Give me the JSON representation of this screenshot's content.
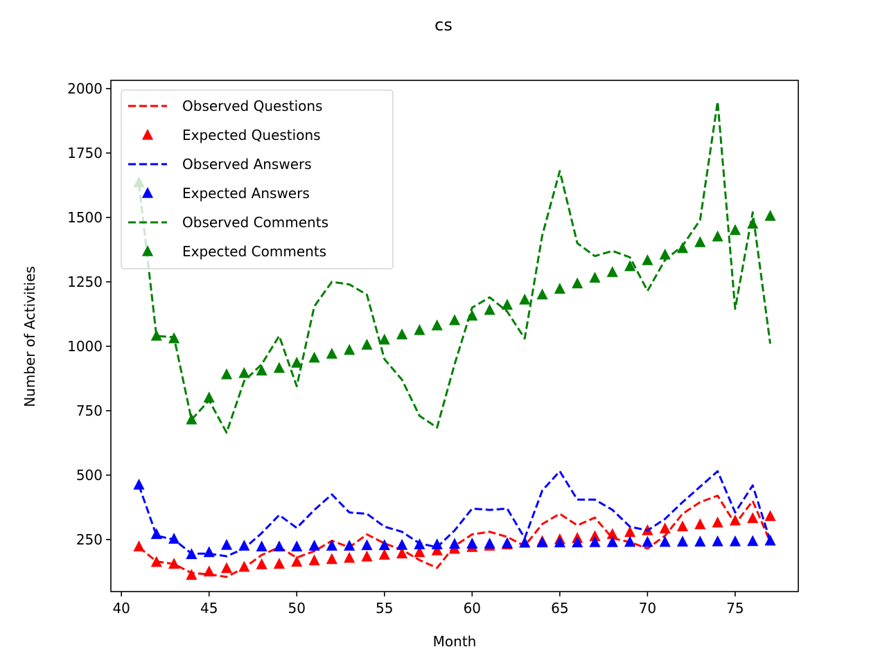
{
  "chart_data": {
    "type": "line",
    "title": "cs",
    "xlabel": "Month",
    "ylabel": "Number of Activities",
    "xlim": [
      39.4,
      78.6
    ],
    "ylim": [
      48,
      2032
    ],
    "xticks": [
      40,
      45,
      50,
      55,
      60,
      65,
      70,
      75
    ],
    "yticks": [
      250,
      500,
      750,
      1000,
      1250,
      1500,
      1750,
      2000
    ],
    "legend_position": "upper-left",
    "x": [
      41,
      42,
      43,
      44,
      45,
      46,
      47,
      48,
      49,
      50,
      51,
      52,
      53,
      54,
      55,
      56,
      57,
      58,
      59,
      60,
      61,
      62,
      63,
      64,
      65,
      66,
      67,
      68,
      69,
      70,
      71,
      72,
      73,
      74,
      75,
      76,
      77
    ],
    "series": [
      {
        "name": "Observed Questions",
        "style": "dashed-line",
        "color": "#ff0000",
        "values": [
          220,
          165,
          155,
          120,
          115,
          105,
          140,
          190,
          220,
          180,
          205,
          245,
          220,
          270,
          235,
          210,
          170,
          140,
          225,
          270,
          280,
          260,
          225,
          310,
          350,
          305,
          335,
          255,
          240,
          215,
          265,
          350,
          395,
          420,
          310,
          400,
          240
        ]
      },
      {
        "name": "Expected Questions",
        "style": "triangle-markers",
        "color": "#ff0000",
        "values": [
          222,
          162,
          155,
          112,
          125,
          138,
          143,
          153,
          155,
          163,
          168,
          173,
          178,
          183,
          190,
          195,
          200,
          207,
          213,
          220,
          225,
          230,
          237,
          243,
          250,
          255,
          262,
          270,
          278,
          285,
          292,
          300,
          308,
          315,
          323,
          332,
          340
        ]
      },
      {
        "name": "Observed Answers",
        "style": "dashed-line",
        "color": "#0000ff",
        "values": [
          460,
          265,
          250,
          195,
          195,
          185,
          215,
          275,
          345,
          295,
          365,
          425,
          355,
          350,
          300,
          280,
          235,
          220,
          285,
          370,
          365,
          370,
          255,
          440,
          515,
          405,
          405,
          365,
          300,
          285,
          330,
          395,
          455,
          515,
          355,
          460,
          245
        ]
      },
      {
        "name": "Expected Answers",
        "style": "triangle-markers",
        "color": "#0000ff",
        "values": [
          462,
          270,
          252,
          192,
          200,
          228,
          225,
          222,
          222,
          222,
          225,
          225,
          225,
          227,
          227,
          228,
          230,
          230,
          232,
          233,
          233,
          235,
          237,
          238,
          238,
          238,
          239,
          239,
          240,
          240,
          240,
          241,
          241,
          242,
          242,
          243,
          245
        ]
      },
      {
        "name": "Observed Comments",
        "style": "dashed-line",
        "color": "#008000",
        "values": [
          1630,
          1040,
          1035,
          715,
          790,
          665,
          865,
          930,
          1040,
          845,
          1155,
          1250,
          1240,
          1200,
          950,
          870,
          730,
          685,
          930,
          1150,
          1190,
          1135,
          1030,
          1430,
          1680,
          1400,
          1350,
          1370,
          1345,
          1215,
          1335,
          1390,
          1490,
          1950,
          1145,
          1520,
          1010
        ]
      },
      {
        "name": "Expected Comments",
        "style": "triangle-markers",
        "color": "#008000",
        "values": [
          1635,
          1040,
          1030,
          715,
          800,
          890,
          895,
          905,
          915,
          935,
          955,
          970,
          985,
          1005,
          1025,
          1045,
          1062,
          1080,
          1100,
          1118,
          1140,
          1160,
          1180,
          1200,
          1222,
          1243,
          1265,
          1287,
          1310,
          1333,
          1355,
          1380,
          1403,
          1425,
          1450,
          1475,
          1505
        ]
      }
    ]
  }
}
